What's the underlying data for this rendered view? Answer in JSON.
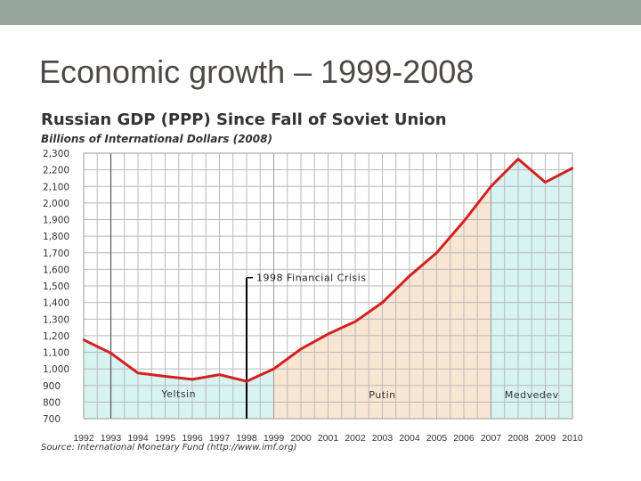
{
  "slide": {
    "title": "Economic growth – 1999-2008"
  },
  "chart_data": {
    "type": "line",
    "title": "Russian GDP (PPP) Since Fall of Soviet Union",
    "subtitle": "Billions of International Dollars (2008)",
    "source": "Source: International Monetary Fund (http://www.imf.org)",
    "xlabel": "",
    "ylabel": "",
    "ylim": [
      700,
      2300
    ],
    "yticks": [
      700,
      800,
      900,
      1000,
      1100,
      1200,
      1300,
      1400,
      1500,
      1600,
      1700,
      1800,
      1900,
      2000,
      2100,
      2200,
      2300
    ],
    "ytick_labels": [
      "700",
      "800",
      "900",
      "1,000",
      "1,100",
      "1,200",
      "1,300",
      "1,400",
      "1,500",
      "1,600",
      "1,700",
      "1,800",
      "1,900",
      "2,000",
      "2,100",
      "2,200",
      "2,300"
    ],
    "xlim": [
      1992,
      2010
    ],
    "xtick_labels": [
      "1992",
      "1993",
      "1994",
      "1995",
      "1996",
      "1997",
      "1998",
      "1999",
      "2000",
      "2001",
      "2002",
      "2003",
      "2004",
      "2005",
      "2006",
      "2007",
      "2008",
      "2009",
      "2010"
    ],
    "grid": true,
    "series": [
      {
        "name": "Russian GDP (PPP)",
        "color": "#d42020",
        "x": [
          1992,
          1993,
          1994,
          1995,
          1996,
          1997,
          1998,
          1999,
          2000,
          2001,
          2002,
          2003,
          2004,
          2005,
          2006,
          2007,
          2008,
          2009,
          2010
        ],
        "y": [
          1175,
          1095,
          975,
          955,
          937,
          965,
          925,
          1000,
          1120,
          1210,
          1285,
          1400,
          1560,
          1700,
          1890,
          2100,
          2265,
          2125,
          2210
        ]
      }
    ],
    "regions": [
      {
        "label": "Yeltsin",
        "from": 1992,
        "to": 1999,
        "color": "#d7f3f2"
      },
      {
        "label": "Putin",
        "from": 1999,
        "to": 2007,
        "color": "#f8e6d3"
      },
      {
        "label": "Medvedev",
        "from": 2007,
        "to": 2010,
        "color": "#d7f3f2"
      }
    ],
    "annotations": [
      {
        "text": "1998 Financial Crisis",
        "x": 1998,
        "y": 1550
      }
    ],
    "markers": [
      1993
    ]
  }
}
